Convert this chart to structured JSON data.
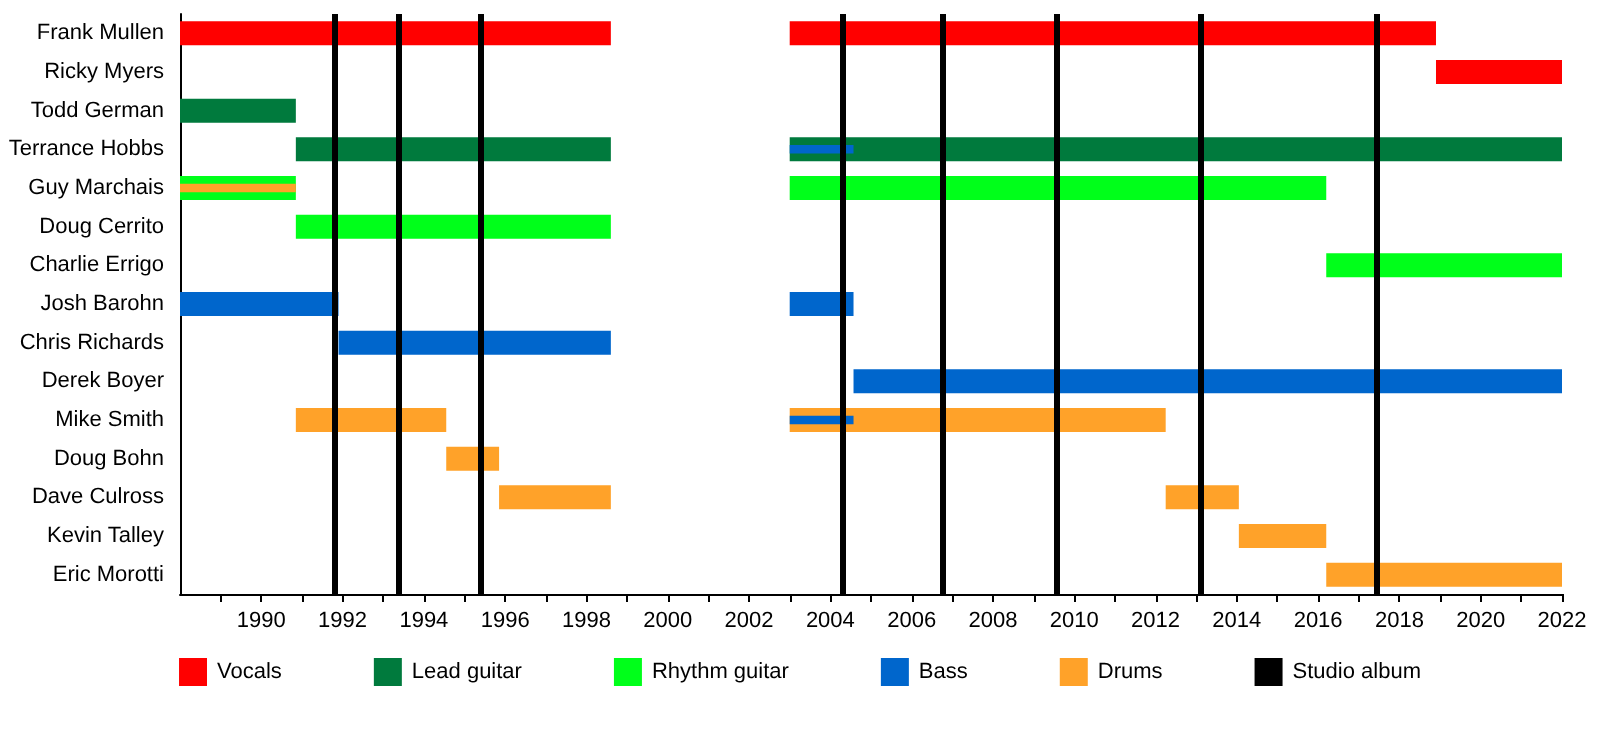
{
  "chart_data": {
    "type": "bar",
    "orientation": "horizontal",
    "categories": [
      "Frank Mullen",
      "Ricky Myers",
      "Todd German",
      "Terrance Hobbs",
      "Guy Marchais",
      "Doug Cerrito",
      "Charlie Errigo",
      "Josh Barohn",
      "Chris Richards",
      "Derek Boyer",
      "Mike Smith",
      "Doug Bohn",
      "Dave Culross",
      "Kevin Talley",
      "Eric Morotti"
    ],
    "series": [
      {
        "name": "Vocals",
        "color": "#ff0000",
        "values": [
          10.6,
          null,
          null,
          null,
          null,
          null,
          null,
          null,
          null,
          null,
          null,
          null,
          null,
          null,
          null
        ],
        "base": [
          1988,
          null,
          null,
          null,
          null,
          null,
          null,
          null,
          null,
          null,
          null,
          null,
          null,
          null,
          null
        ]
      },
      {
        "color": "#ff0000",
        "values": [
          15.9,
          3.1,
          null,
          null,
          null,
          null,
          null,
          null,
          null,
          null,
          null,
          null,
          null,
          null,
          null
        ],
        "base": [
          2003,
          2018.9,
          null,
          null,
          null,
          null,
          null,
          null,
          null,
          null,
          null,
          null,
          null,
          null,
          null
        ]
      },
      {
        "name": "Lead guitar",
        "color": "#007a3d",
        "values": [
          null,
          null,
          2.85,
          7.75,
          null,
          null,
          null,
          null,
          null,
          null,
          null,
          null,
          null,
          null,
          null
        ],
        "base": [
          null,
          null,
          1988,
          1990.85,
          null,
          null,
          null,
          null,
          null,
          null,
          null,
          null,
          null,
          null,
          null
        ]
      },
      {
        "color": "#007a3d",
        "values": [
          null,
          null,
          null,
          19,
          null,
          null,
          null,
          null,
          null,
          null,
          null,
          null,
          null,
          null,
          null
        ],
        "base": [
          null,
          null,
          null,
          2003,
          null,
          null,
          null,
          null,
          null,
          null,
          null,
          null,
          null,
          null,
          null
        ]
      },
      {
        "name": "Rhythm guitar",
        "color": "#00ff1a",
        "values": [
          null,
          null,
          null,
          null,
          2.85,
          7.75,
          null,
          null,
          null,
          null,
          null,
          null,
          null,
          null,
          null
        ],
        "base": [
          null,
          null,
          null,
          null,
          1988,
          1990.85,
          null,
          null,
          null,
          null,
          null,
          null,
          null,
          null,
          null
        ]
      },
      {
        "color": "#00ff1a",
        "values": [
          null,
          null,
          null,
          null,
          13.2,
          null,
          5.8,
          null,
          null,
          null,
          null,
          null,
          null,
          null,
          null
        ],
        "base": [
          null,
          null,
          null,
          null,
          2003,
          null,
          2016.2,
          null,
          null,
          null,
          null,
          null,
          null,
          null,
          null
        ]
      },
      {
        "name": "Bass",
        "color": "#0066cc",
        "values": [
          null,
          null,
          null,
          null,
          null,
          null,
          null,
          3.9,
          6.7,
          null,
          null,
          null,
          null,
          null,
          null
        ],
        "base": [
          null,
          null,
          null,
          null,
          null,
          null,
          null,
          1988,
          1991.9,
          null,
          null,
          null,
          null,
          null,
          null
        ]
      },
      {
        "color": "#0066cc",
        "values": [
          null,
          null,
          null,
          null,
          null,
          null,
          null,
          1.57,
          null,
          17.43,
          null,
          null,
          null,
          null,
          null
        ],
        "base": [
          null,
          null,
          null,
          null,
          null,
          null,
          null,
          2003,
          null,
          2004.57,
          null,
          null,
          null,
          null,
          null
        ]
      },
      {
        "name": "Drums",
        "color": "#ffa229",
        "values": [
          null,
          null,
          null,
          null,
          null,
          null,
          null,
          null,
          null,
          null,
          3.7,
          1.3,
          2.75,
          2.15,
          5.8
        ],
        "base": [
          null,
          null,
          null,
          null,
          null,
          null,
          null,
          null,
          null,
          null,
          1990.85,
          1994.55,
          1995.85,
          2014.05,
          2016.2
        ]
      },
      {
        "color": "#ffa229",
        "values": [
          null,
          null,
          null,
          null,
          null,
          null,
          null,
          null,
          null,
          null,
          9.25,
          null,
          1.8,
          null,
          null
        ],
        "base": [
          null,
          null,
          null,
          null,
          null,
          null,
          null,
          null,
          null,
          null,
          2003,
          null,
          2012.25,
          null,
          null
        ]
      },
      {
        "color": "#ffa229",
        "values": [
          null,
          null,
          null,
          null,
          2.85,
          null,
          null,
          null,
          null,
          null,
          null,
          null,
          null,
          null,
          null
        ],
        "base": [
          null,
          null,
          null,
          null,
          1988,
          null,
          null,
          null,
          null,
          null,
          null,
          null,
          null,
          null,
          null
        ]
      },
      {
        "color": "#0066cc",
        "values": [
          null,
          null,
          null,
          1.57,
          null,
          null,
          null,
          null,
          null,
          null,
          1.57,
          null,
          null,
          null,
          null
        ],
        "base": [
          null,
          null,
          null,
          2003,
          null,
          null,
          null,
          null,
          null,
          null,
          2003,
          null,
          null,
          null,
          null
        ]
      }
    ],
    "xlim": [
      1988,
      2022
    ],
    "xticks": [
      {
        "value": 1989,
        "label": null
      },
      1990,
      {
        "value": 1991,
        "label": null
      },
      1992,
      {
        "value": 1993,
        "label": null
      },
      1994,
      {
        "value": 1995,
        "label": null
      },
      1996,
      {
        "value": 1997,
        "label": null
      },
      1998,
      {
        "value": 1999,
        "label": null
      },
      2000,
      {
        "value": 2001,
        "label": null
      },
      2002,
      {
        "value": 2003,
        "label": null
      },
      2004,
      {
        "value": 2005,
        "label": null
      },
      2006,
      {
        "value": 2007,
        "label": null
      },
      2008,
      {
        "value": 2009,
        "label": null
      },
      2010,
      {
        "value": 2011,
        "label": null
      },
      2012,
      {
        "value": 2013,
        "label": null
      },
      2014,
      {
        "value": 2015,
        "label": null
      },
      2016,
      {
        "value": 2017,
        "label": null
      },
      2018,
      {
        "value": 2019,
        "label": null
      },
      2020,
      {
        "value": 2021,
        "label": null
      },
      2022
    ],
    "ref_lines": [
      {
        "axis": "x",
        "value": 1991.8,
        "label": "Studio album",
        "color": "#000000"
      },
      {
        "axis": "x",
        "value": 1993.4,
        "label": null,
        "color": "#000000"
      },
      {
        "axis": "x",
        "value": 1995.4,
        "label": null,
        "color": "#000000"
      },
      {
        "axis": "x",
        "value": 2004.3,
        "label": null,
        "color": "#000000"
      },
      {
        "axis": "x",
        "value": 2006.75,
        "label": null,
        "color": "#000000"
      },
      {
        "axis": "x",
        "value": 2009.55,
        "label": null,
        "color": "#000000"
      },
      {
        "axis": "x",
        "value": 2013.1,
        "label": null,
        "color": "#000000"
      },
      {
        "axis": "x",
        "value": 2017.45,
        "label": null,
        "color": "#000000"
      }
    ],
    "grid": false,
    "legend": "bottom"
  }
}
